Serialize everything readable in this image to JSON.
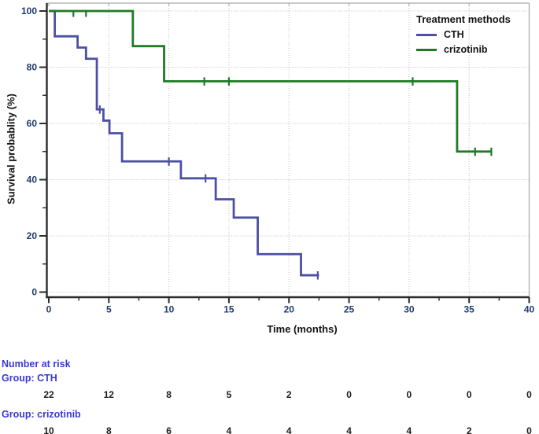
{
  "chart_data": {
    "type": "line",
    "subtype": "kaplan_meier_step",
    "title": "",
    "xlabel": "Time (months)",
    "ylabel": "Survival probablity (%)",
    "xlim": [
      0,
      40
    ],
    "ylim": [
      0,
      100
    ],
    "xticks": [
      0,
      5,
      10,
      15,
      20,
      25,
      30,
      35,
      40
    ],
    "yticks": [
      0,
      20,
      40,
      60,
      80,
      100
    ],
    "x_minor_ticks": [
      2.5,
      7.5,
      12.5,
      17.5,
      22.5,
      27.5,
      32.5,
      37.5
    ],
    "y_minor_ticks": [
      10,
      30,
      50,
      70,
      90
    ],
    "grid": "dotted gridlines at major ticks",
    "legend": {
      "title": "Treatment methods",
      "position": "top-right",
      "entries": [
        "CTH",
        "crizotinib"
      ]
    },
    "series": [
      {
        "name": "CTH",
        "color": "#4c50a2",
        "steps": [
          [
            0,
            100
          ],
          [
            0.5,
            91
          ],
          [
            2.4,
            87
          ],
          [
            3.1,
            83
          ],
          [
            4.0,
            65
          ],
          [
            4.55,
            61
          ],
          [
            5.05,
            56.5
          ],
          [
            6.1,
            46.5
          ],
          [
            11,
            40.5
          ],
          [
            13.9,
            33
          ],
          [
            15.4,
            26.5
          ],
          [
            17.4,
            13.5
          ],
          [
            21,
            6
          ]
        ],
        "end_time": 22.5,
        "censor_marks": [
          [
            4.25,
            65
          ],
          [
            10.0,
            46.5
          ],
          [
            13.05,
            40.5
          ],
          [
            22.4,
            6
          ]
        ]
      },
      {
        "name": "crizotinib",
        "color": "#1f7a23",
        "steps": [
          [
            0,
            100
          ],
          [
            7,
            87.5
          ],
          [
            9.6,
            75
          ],
          [
            34,
            50
          ]
        ],
        "end_time": 36.9,
        "censor_marks": [
          [
            2.05,
            100
          ],
          [
            3.1,
            100
          ],
          [
            12.95,
            75
          ],
          [
            15.0,
            75
          ],
          [
            30.3,
            75
          ],
          [
            35.5,
            50
          ],
          [
            36.85,
            50
          ]
        ]
      }
    ]
  },
  "risk_table": {
    "title": "Number at risk",
    "times": [
      0,
      5,
      10,
      15,
      20,
      25,
      30,
      35,
      40
    ],
    "groups": [
      {
        "label": "Group: CTH",
        "counts": [
          "22",
          "12",
          "8",
          "5",
          "2",
          "0",
          "0",
          "0",
          "0"
        ]
      },
      {
        "label": "Group: crizotinib",
        "counts": [
          "10",
          "8",
          "6",
          "4",
          "4",
          "4",
          "4",
          "2",
          "0"
        ]
      }
    ]
  },
  "colors": {
    "cth_line": "#4c50a2",
    "crizotinib_line": "#1f7a23",
    "tick_label": "#1e3c6e",
    "axis": "#2b2b2b",
    "grid": "#c0c0c0",
    "frame": "#a6a6a6",
    "risk_text": "#3a3ad1",
    "axis_title": "#141414"
  }
}
